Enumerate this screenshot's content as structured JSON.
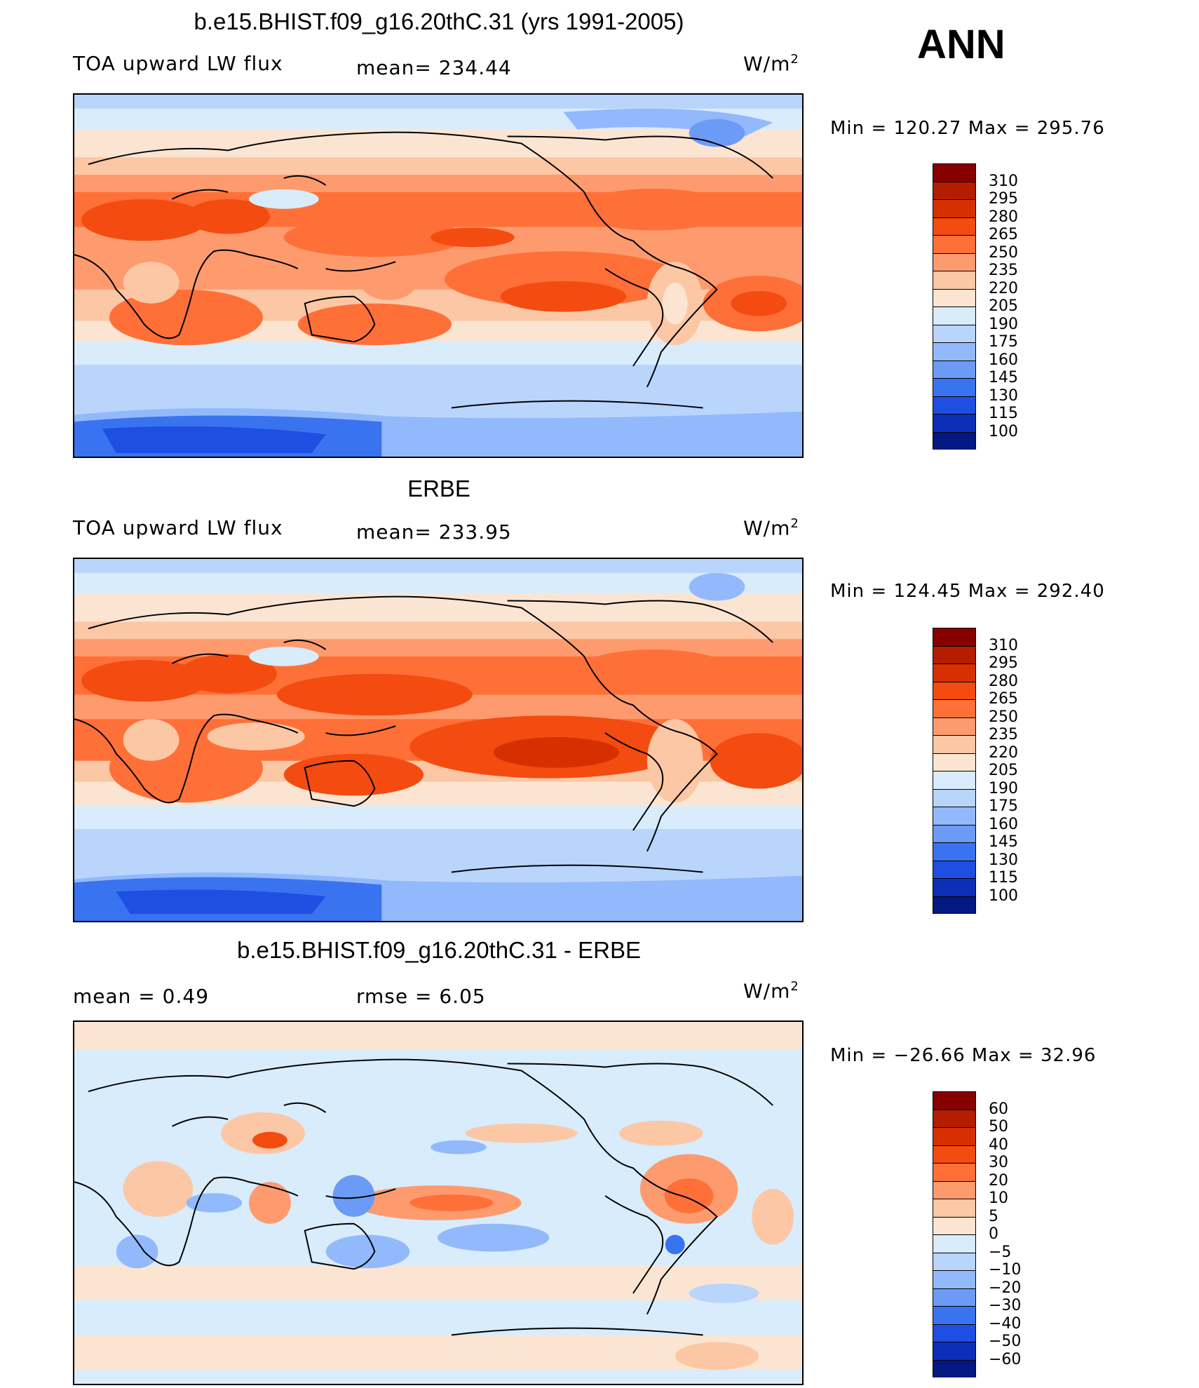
{
  "title_top": "b.e15.BHIST.f09_g16.20thC.31 (yrs 1991-2005)",
  "season": "ANN",
  "panels": [
    {
      "title": "b.e15.BHIST.f09_g16.20thC.31 (yrs 1991-2005)",
      "left": "TOA upward LW flux",
      "mid": "mean=  234.44",
      "units": "W/m",
      "units_sup": "2",
      "minmax": "Min  =  120.27  Max  =  295.76"
    },
    {
      "title": "ERBE",
      "left": "TOA upward LW flux",
      "mid": "mean=  233.95",
      "units": "W/m",
      "units_sup": "2",
      "minmax": "Min  =  124.45  Max  =  292.40"
    },
    {
      "title": "b.e15.BHIST.f09_g16.20thC.31 - ERBE",
      "left": "mean  =      0.49",
      "mid": "rmse  =      6.05",
      "units": "W/m",
      "units_sup": "2",
      "minmax": "Min  =  −26.66  Max  =    32.96"
    }
  ],
  "colorbars": {
    "abs": {
      "labels": [
        "310",
        "295",
        "280",
        "265",
        "250",
        "235",
        "220",
        "205",
        "190",
        "175",
        "160",
        "145",
        "130",
        "115",
        "100"
      ],
      "colors": [
        "#870000",
        "#b41d00",
        "#d73000",
        "#f44b10",
        "#ff7038",
        "#fd9b6f",
        "#fcc7a4",
        "#fbe5d2",
        "#d8ecfc",
        "#b9d5fc",
        "#92b9fb",
        "#6b9bf7",
        "#3a73f0",
        "#1f4fe2",
        "#0d2fb8",
        "#041882"
      ]
    },
    "diff": {
      "labels": [
        "60",
        "50",
        "40",
        "30",
        "20",
        "10",
        "5",
        "0",
        "−5",
        "−10",
        "−20",
        "−30",
        "−40",
        "−50",
        "−60"
      ],
      "colors": [
        "#870000",
        "#b41d00",
        "#d73000",
        "#f44b10",
        "#ff7038",
        "#fd9b6f",
        "#fcc7a4",
        "#fbe5d2",
        "#d8ecfc",
        "#b9d5fc",
        "#92b9fb",
        "#6b9bf7",
        "#3a73f0",
        "#1f4fe2",
        "#0d2fb8",
        "#041882"
      ]
    }
  }
}
